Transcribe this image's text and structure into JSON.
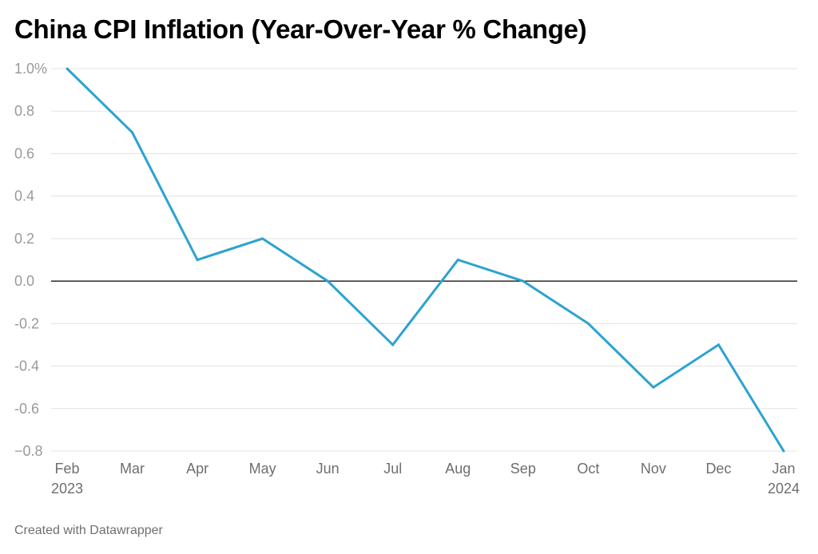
{
  "title": "China CPI Inflation (Year-Over-Year % Change)",
  "footer": "Created with Datawrapper",
  "colors": {
    "line": "#2ba3cf",
    "grid": "#e3e3e3",
    "zero": "#000000"
  },
  "chart_data": {
    "type": "line",
    "title": "China CPI Inflation (Year-Over-Year % Change)",
    "xlabel": "",
    "ylabel": "",
    "grid": true,
    "ylim": [
      -0.8,
      1.0
    ],
    "categories": [
      "Feb 2023",
      "Mar",
      "Apr",
      "May",
      "Jun",
      "Jul",
      "Aug",
      "Sep",
      "Oct",
      "Nov",
      "Dec",
      "Jan 2024"
    ],
    "x_tick_labels": [
      [
        "Feb",
        "2023"
      ],
      [
        "Mar"
      ],
      [
        "Apr"
      ],
      [
        "May"
      ],
      [
        "Jun"
      ],
      [
        "Jul"
      ],
      [
        "Aug"
      ],
      [
        "Sep"
      ],
      [
        "Oct"
      ],
      [
        "Nov"
      ],
      [
        "Dec"
      ],
      [
        "Jan",
        "2024"
      ]
    ],
    "y_ticks": [
      1.0,
      0.8,
      0.6,
      0.4,
      0.2,
      0.0,
      -0.2,
      -0.4,
      -0.6,
      -0.8
    ],
    "y_tick_labels": [
      "1.0%",
      "0.8",
      "0.6",
      "0.4",
      "0.2",
      "0.0",
      "-0.2",
      "-0.4",
      "-0.6",
      "−0.8"
    ],
    "series": [
      {
        "values": [
          1.0,
          0.7,
          0.1,
          0.2,
          0.0,
          -0.3,
          0.1,
          0.0,
          -0.2,
          -0.5,
          -0.3,
          -0.8
        ]
      }
    ]
  }
}
